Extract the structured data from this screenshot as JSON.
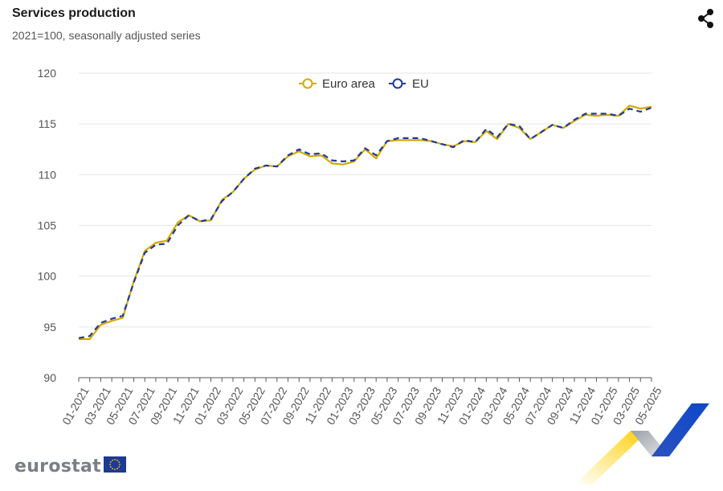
{
  "header": {
    "title": "Services production",
    "subtitle": "2021=100, seasonally adjusted series"
  },
  "toolbar": {
    "share_icon": "share-icon"
  },
  "branding": {
    "logo_text": "eurostat",
    "flag_icon": "eu-flag-icon"
  },
  "colors": {
    "euro_area": "#d4a900",
    "eu": "#1f3a93",
    "grid": "#e6e6e6"
  },
  "chart_data": {
    "type": "line",
    "title": "Services production",
    "subtitle": "2021=100, seasonally adjusted series",
    "xlabel": "",
    "ylabel": "",
    "ylim": [
      90,
      120
    ],
    "yticks": [
      90,
      95,
      100,
      105,
      110,
      115,
      120
    ],
    "grid": true,
    "legend_position": "top-center",
    "x": [
      "01-2021",
      "02-2021",
      "03-2021",
      "04-2021",
      "05-2021",
      "06-2021",
      "07-2021",
      "08-2021",
      "09-2021",
      "10-2021",
      "11-2021",
      "12-2021",
      "01-2022",
      "02-2022",
      "03-2022",
      "04-2022",
      "05-2022",
      "06-2022",
      "07-2022",
      "08-2022",
      "09-2022",
      "10-2022",
      "11-2022",
      "12-2022",
      "01-2023",
      "02-2023",
      "03-2023",
      "04-2023",
      "05-2023",
      "06-2023",
      "07-2023",
      "08-2023",
      "09-2023",
      "10-2023",
      "11-2023",
      "12-2023",
      "01-2024",
      "02-2024",
      "03-2024",
      "04-2024",
      "05-2024",
      "06-2024",
      "07-2024",
      "08-2024",
      "09-2024",
      "10-2024",
      "11-2024",
      "12-2024",
      "01-2025",
      "02-2025",
      "03-2025",
      "04-2025",
      "05-2025"
    ],
    "xtick_labels": [
      "01-2021",
      "03-2021",
      "05-2021",
      "07-2021",
      "09-2021",
      "11-2021",
      "01-2022",
      "03-2022",
      "05-2022",
      "07-2022",
      "09-2022",
      "11-2022",
      "01-2023",
      "03-2023",
      "05-2023",
      "07-2023",
      "09-2023",
      "11-2023",
      "01-2024",
      "03-2024",
      "05-2024",
      "07-2024",
      "09-2024",
      "11-2024",
      "01-2025",
      "03-2025",
      "05-2025"
    ],
    "series": [
      {
        "name": "Euro area",
        "style": "solid",
        "values": [
          93.8,
          93.8,
          95.2,
          95.6,
          95.9,
          99.5,
          102.5,
          103.3,
          103.5,
          105.3,
          106.0,
          105.4,
          105.5,
          107.5,
          108.3,
          109.6,
          110.5,
          110.9,
          110.8,
          111.8,
          112.3,
          111.8,
          111.9,
          111.1,
          111.0,
          111.3,
          112.5,
          111.6,
          113.3,
          113.4,
          113.4,
          113.4,
          113.3,
          113.0,
          112.8,
          113.3,
          113.2,
          114.3,
          113.5,
          115.0,
          114.6,
          113.5,
          114.2,
          114.9,
          114.6,
          115.3,
          115.9,
          115.8,
          115.9,
          115.8,
          116.8,
          116.5,
          116.7
        ]
      },
      {
        "name": "EU",
        "style": "dashed",
        "values": [
          93.9,
          94.1,
          95.4,
          95.8,
          96.1,
          99.4,
          102.3,
          103.1,
          103.2,
          105.0,
          106.0,
          105.4,
          105.6,
          107.4,
          108.3,
          109.6,
          110.6,
          110.9,
          110.8,
          111.9,
          112.5,
          112.0,
          112.1,
          111.4,
          111.3,
          111.4,
          112.6,
          111.9,
          113.3,
          113.6,
          113.6,
          113.6,
          113.3,
          113.0,
          112.7,
          113.4,
          113.2,
          114.5,
          113.7,
          115.0,
          114.8,
          113.5,
          114.2,
          114.9,
          114.6,
          115.4,
          116.0,
          116.0,
          116.0,
          115.8,
          116.5,
          116.2,
          116.6
        ]
      }
    ]
  }
}
